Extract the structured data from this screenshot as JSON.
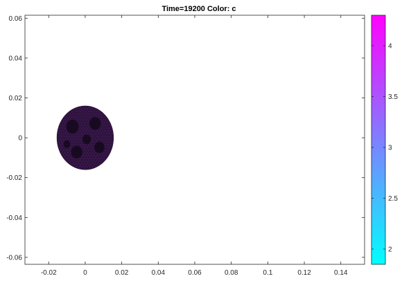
{
  "chart_data": {
    "type": "scatter",
    "title": "Time=19200   Color: c",
    "xlabel": "",
    "ylabel": "",
    "xlim": [
      -0.033,
      0.153
    ],
    "ylim": [
      -0.0635,
      0.0615
    ],
    "x_ticks": [
      -0.02,
      0,
      0.02,
      0.04,
      0.06,
      0.08,
      0.1,
      0.12,
      0.14
    ],
    "x_tick_labels": [
      "-0.02",
      "0",
      "0.02",
      "0.04",
      "0.06",
      "0.08",
      "0.1",
      "0.12",
      "0.14"
    ],
    "y_ticks": [
      0.06,
      0.04,
      0.02,
      0,
      -0.02,
      -0.04,
      -0.06
    ],
    "y_tick_labels": [
      "0.06",
      "0.04",
      "0.02",
      "0",
      "-0.02",
      "-0.04",
      "-0.06"
    ],
    "grid": false,
    "shape": {
      "kind": "disk",
      "center": [
        0,
        0
      ],
      "radius_x": 0.0155,
      "radius_y": 0.016,
      "fill_color": "#2a1238",
      "mesh_color": "#6a2a8a"
    },
    "colorbar": {
      "range": [
        1.85,
        4.3
      ],
      "ticks": [
        4,
        3.5,
        3,
        2.5,
        2
      ],
      "tick_labels": [
        "4",
        "3.5",
        "3",
        "2.5",
        "2"
      ],
      "color_low": "#00ffff",
      "color_high": "#ff00ff",
      "placement": "right"
    }
  }
}
